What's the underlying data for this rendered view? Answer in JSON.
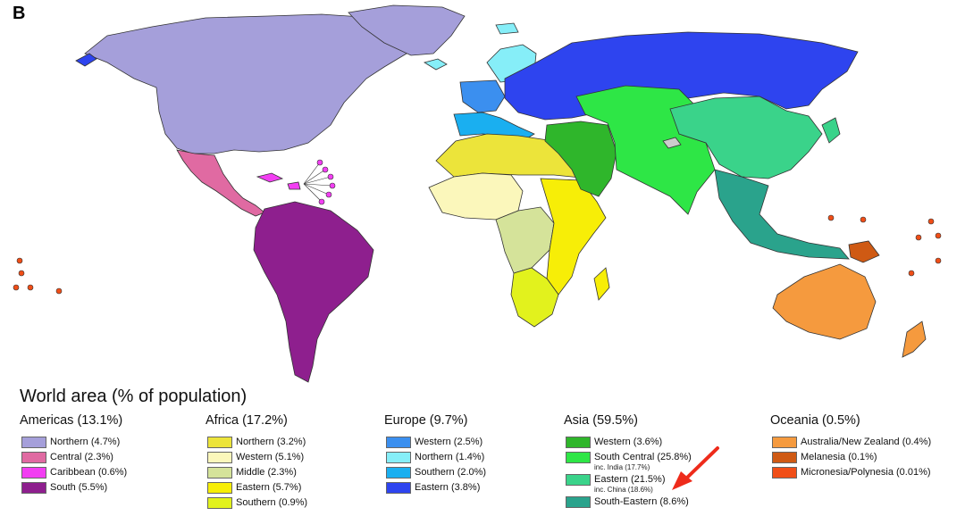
{
  "panel_label": "B",
  "legend": {
    "title": "World area (% of population)",
    "groups": [
      {
        "title": "Americas (13.1%)",
        "items": [
          {
            "label": "Northern (4.7%)",
            "color": "#a59fda"
          },
          {
            "label": "Central (2.3%)",
            "color": "#e06aa2"
          },
          {
            "label": "Caribbean (0.6%)",
            "color": "#f23ef2"
          },
          {
            "label": "South (5.5%)",
            "color": "#8e1f8e"
          }
        ]
      },
      {
        "title": "Africa (17.2%)",
        "items": [
          {
            "label": "Northern (3.2%)",
            "color": "#ece43a"
          },
          {
            "label": "Western (5.1%)",
            "color": "#fbf7bb"
          },
          {
            "label": "Middle (2.3%)",
            "color": "#d5e39a"
          },
          {
            "label": "Eastern (5.7%)",
            "color": "#f7ee07"
          },
          {
            "label": "Southern (0.9%)",
            "color": "#e2f21d"
          }
        ]
      },
      {
        "title": "Europe (9.7%)",
        "items": [
          {
            "label": "Western (2.5%)",
            "color": "#3b8fef"
          },
          {
            "label": "Northern (1.4%)",
            "color": "#86eef8"
          },
          {
            "label": "Southern (2.0%)",
            "color": "#1aaff0"
          },
          {
            "label": "Eastern (3.8%)",
            "color": "#2e44ef"
          }
        ]
      },
      {
        "title": "Asia (59.5%)",
        "items": [
          {
            "label": "Western (3.6%)",
            "color": "#2fb62b"
          },
          {
            "label": "South Central (25.8%)",
            "sublabel": "inc. India (17.7%)",
            "color": "#2ee646"
          },
          {
            "label": "Eastern (21.5%)",
            "sublabel": "inc. China (18.6%)",
            "color": "#3ad38a"
          },
          {
            "label": "South-Eastern (8.6%)",
            "color": "#2aa38c"
          }
        ]
      },
      {
        "title": "Oceania (0.5%)",
        "items": [
          {
            "label": "Australia/New Zealand (0.4%)",
            "color": "#f59a3e"
          },
          {
            "label": "Melanesia (0.1%)",
            "color": "#cf5a14"
          },
          {
            "label": "Micronesia/Polynesia (0.01%)",
            "color": "#f04e17"
          }
        ]
      }
    ]
  },
  "colors": {
    "grey_region": "#cccccc",
    "annotation_arrow": "#ee2b1b"
  }
}
